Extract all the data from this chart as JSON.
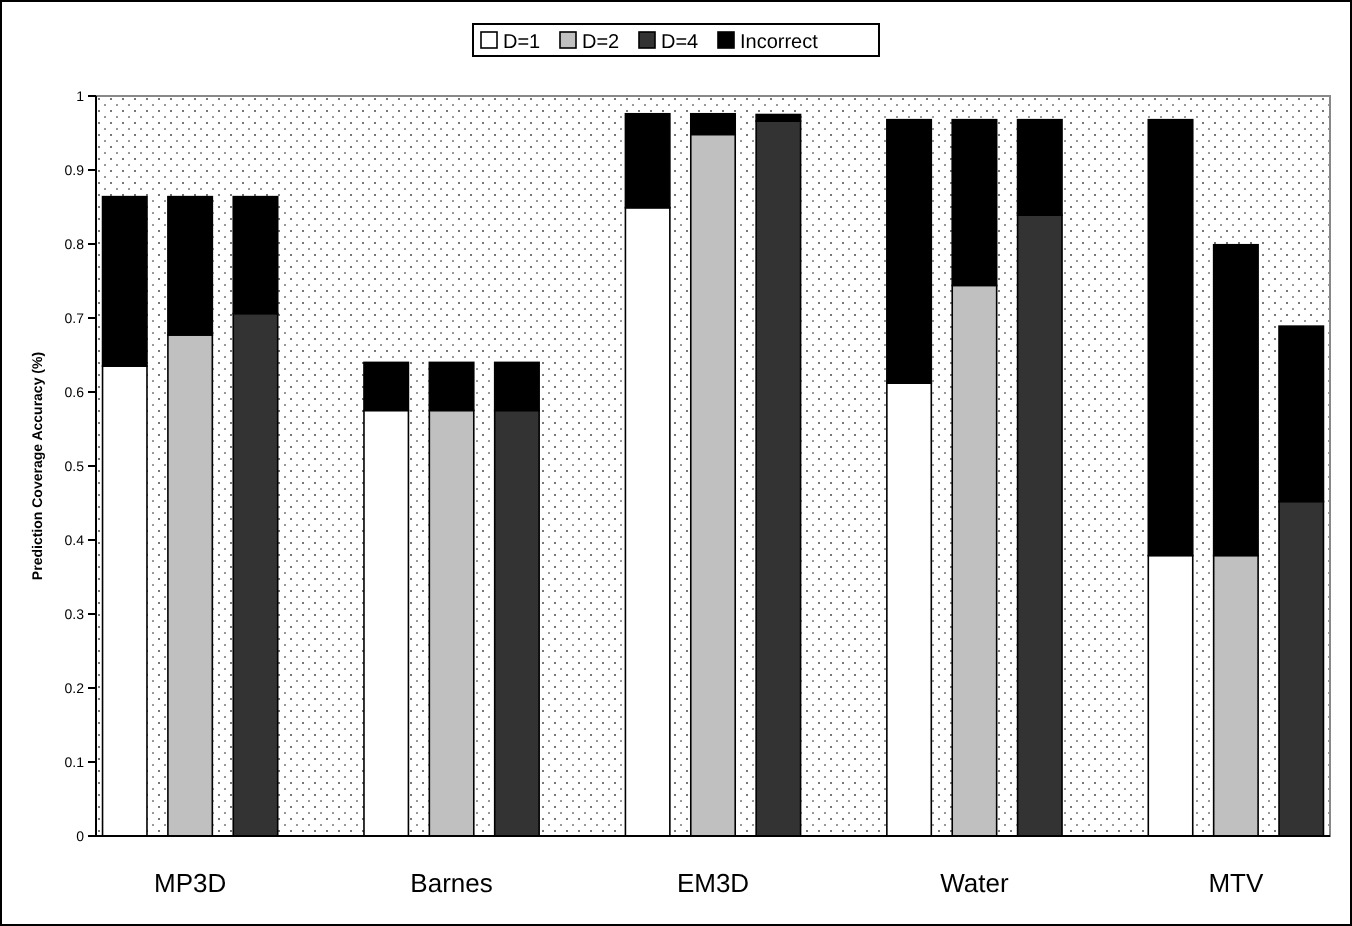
{
  "chart_data": {
    "type": "bar",
    "stacked": true,
    "ylabel": "Prediction Coverage Accuracy (%)",
    "categories": [
      null,
      "MP3D",
      null,
      null,
      null,
      "Barnes",
      null,
      null,
      null,
      "EM3D",
      null,
      null,
      null,
      "Water",
      null,
      null,
      null,
      "MTV",
      null
    ],
    "series": [
      {
        "name": "D=1",
        "color": "#ffffff",
        "values": [
          0.635,
          null,
          null,
          null,
          0.575,
          null,
          null,
          null,
          0.849,
          null,
          null,
          null,
          0.612,
          null,
          null,
          null,
          0.379,
          null,
          null
        ]
      },
      {
        "name": "D=2",
        "color": "#c0c0c0",
        "values": [
          null,
          0.677,
          null,
          null,
          null,
          0.575,
          null,
          null,
          null,
          0.948,
          null,
          null,
          null,
          0.744,
          null,
          null,
          null,
          0.379,
          null
        ]
      },
      {
        "name": "D=4",
        "color": "#333333",
        "values": [
          null,
          null,
          0.706,
          null,
          null,
          null,
          0.575,
          null,
          null,
          null,
          0.966,
          null,
          null,
          null,
          0.839,
          null,
          null,
          null,
          0.452
        ]
      },
      {
        "name": "Incorrect",
        "color": "#000000",
        "values": [
          0.229,
          0.187,
          0.158,
          null,
          0.065,
          0.065,
          0.065,
          null,
          0.127,
          0.028,
          0.009,
          null,
          0.356,
          0.224,
          0.129,
          null,
          0.589,
          0.42,
          0.237
        ]
      }
    ],
    "ylim": [
      0,
      1
    ],
    "yticks": [
      0,
      0.1,
      0.2,
      0.3,
      0.4,
      0.5,
      0.6,
      0.7,
      0.8,
      0.9,
      1
    ],
    "grid": false,
    "legend": "top"
  }
}
